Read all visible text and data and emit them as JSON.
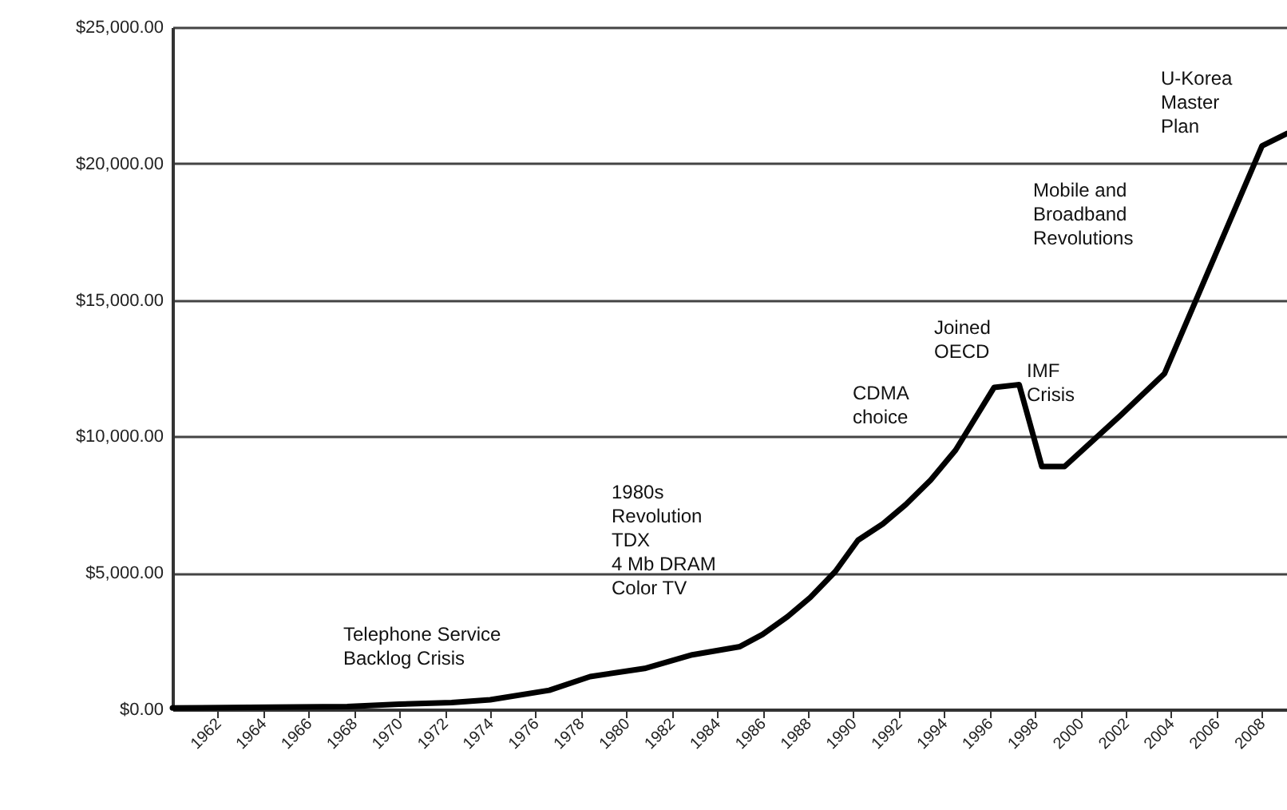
{
  "chart_data": {
    "type": "line",
    "x": [
      1960.0,
      1964.4,
      1967.7,
      1970.0,
      1972.3,
      1974.0,
      1976.6,
      1978.4,
      1980.8,
      1982.9,
      1985.0,
      1986.0,
      1987.1,
      1988.1,
      1989.2,
      1990.2,
      1991.3,
      1992.3,
      1993.4,
      1994.5,
      1996.2,
      1997.3,
      1998.3,
      1999.3,
      2001.8,
      2003.7,
      2008.0,
      2009.1
    ],
    "series": [
      {
        "color": "#000000",
        "values": [
          50,
          80,
          100,
          190,
          250,
          350,
          700,
          1200,
          1500,
          2000,
          2300,
          2750,
          3400,
          4100,
          5050,
          6200,
          6800,
          7500,
          8400,
          9500,
          11800,
          11900,
          8900,
          8900,
          10800,
          12300,
          20650,
          21100
        ]
      }
    ],
    "xlim": [
      1960,
      2009.1
    ],
    "xticks": [
      1962,
      1964,
      1966,
      1968,
      1970,
      1972,
      1974,
      1976,
      1978,
      1980,
      1982,
      1984,
      1986,
      1988,
      1990,
      1992,
      1994,
      1996,
      1998,
      2000,
      2002,
      2004,
      2006,
      2008
    ],
    "ylim": [
      0,
      25000
    ],
    "yticks": [
      {
        "value": 0,
        "label": "$0.00"
      },
      {
        "value": 5000,
        "label": "$5,000.00"
      },
      {
        "value": 10000,
        "label": "$10,000.00"
      },
      {
        "value": 15000,
        "label": "$15,000.00"
      },
      {
        "value": 20000,
        "label": "$20,000.00"
      },
      {
        "value": 25000,
        "label": "$25,000.00"
      }
    ],
    "grid": "y",
    "marker": "none",
    "line_style": "solid",
    "annotations": [
      "Telephone Service\nBacklog Crisis",
      "1980s\nRevolution\nTDX\n4 Mb DRAM\nColor TV",
      "CDMA\nchoice",
      "Joined\nOECD",
      "IMF\nCrisis",
      "Mobile and\nBroadband\nRevolutions",
      "U-Korea\nMaster\nPlan"
    ]
  }
}
